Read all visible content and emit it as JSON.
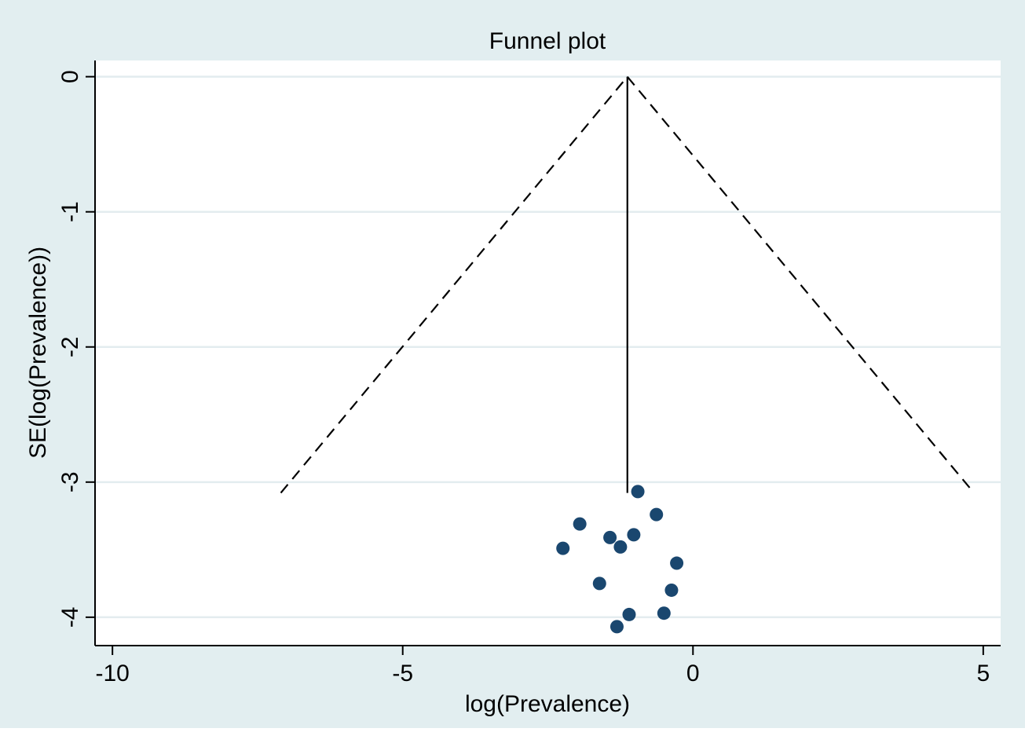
{
  "chart_data": {
    "type": "scatter",
    "title": "Funnel plot",
    "xlabel": "log(Prevalence)",
    "ylabel": "SE(log(Prevalence))",
    "xlim": [
      -10.3,
      5.3
    ],
    "ylim": [
      -4.21,
      0.12
    ],
    "xticks": [
      -10,
      -5,
      0,
      5
    ],
    "xtick_labels": [
      "-10",
      "-5",
      "0",
      "5"
    ],
    "yticks": [
      0,
      -1,
      -2,
      -3,
      -4
    ],
    "ytick_labels": [
      "0",
      "-1",
      "-2",
      "-3",
      "-4"
    ],
    "grid": "horizontal",
    "legend": "none",
    "pooled_estimate": -1.13,
    "funnel": {
      "apex": {
        "x": -1.13,
        "y": 0
      },
      "left_end": {
        "x": -7.1,
        "y": -3.08
      },
      "right_end": {
        "x": 4.84,
        "y": -3.08
      },
      "center_line_bottom": -3.08
    },
    "series": [
      {
        "points": [
          {
            "x": -0.95,
            "y": -3.07
          },
          {
            "x": -0.63,
            "y": -3.24
          },
          {
            "x": -1.95,
            "y": -3.31
          },
          {
            "x": -1.43,
            "y": -3.41
          },
          {
            "x": -1.02,
            "y": -3.39
          },
          {
            "x": -2.24,
            "y": -3.49
          },
          {
            "x": -1.25,
            "y": -3.48
          },
          {
            "x": -0.28,
            "y": -3.6
          },
          {
            "x": -1.61,
            "y": -3.75
          },
          {
            "x": -0.37,
            "y": -3.8
          },
          {
            "x": -1.1,
            "y": -3.98
          },
          {
            "x": -0.5,
            "y": -3.97
          },
          {
            "x": -1.31,
            "y": -4.07
          }
        ]
      }
    ],
    "colors": {
      "background": "#e2eef0",
      "plot_area": "#ffffff",
      "gridline": "#e3ecef",
      "marker": "#1a476f",
      "line": "#000000"
    }
  }
}
